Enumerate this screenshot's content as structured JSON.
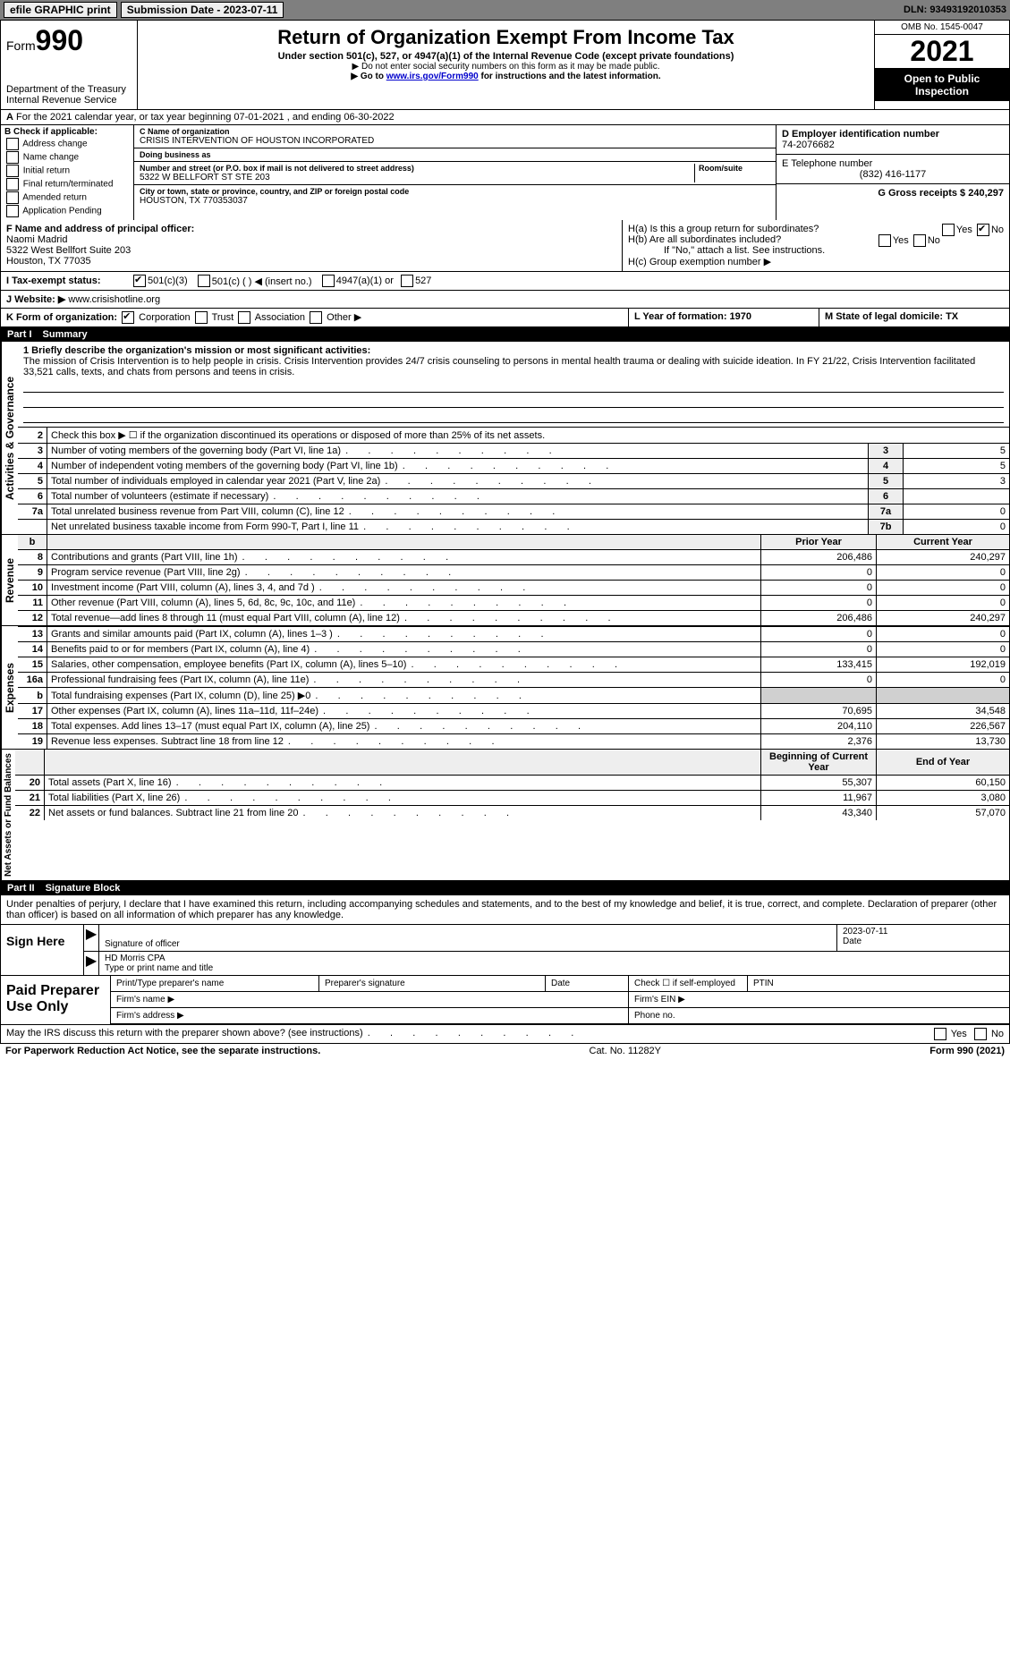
{
  "topbar": {
    "efile_label": "efile GRAPHIC print",
    "submission_label": "Submission Date - 2023-07-11",
    "dln": "DLN: 93493192010353"
  },
  "header": {
    "form_word": "Form",
    "form_num": "990",
    "dept": "Department of the Treasury",
    "irs": "Internal Revenue Service",
    "title": "Return of Organization Exempt From Income Tax",
    "subtitle": "Under section 501(c), 527, or 4947(a)(1) of the Internal Revenue Code (except private foundations)",
    "note1": "▶ Do not enter social security numbers on this form as it may be made public.",
    "note2_pre": "▶ Go to ",
    "note2_link": "www.irs.gov/Form990",
    "note2_post": " for instructions and the latest information.",
    "omb": "OMB No. 1545-0047",
    "year": "2021",
    "open_pub": "Open to Public Inspection"
  },
  "rowA": {
    "text": "For the 2021 calendar year, or tax year beginning 07-01-2021    , and ending 06-30-2022",
    "prefix": "A"
  },
  "secB": {
    "b_label": "B Check if applicable:",
    "addr_change": "Address change",
    "name_change": "Name change",
    "initial": "Initial return",
    "final": "Final return/terminated",
    "amended": "Amended return",
    "app_pending": "Application Pending",
    "c_label": "C Name of organization",
    "c_val": "CRISIS INTERVENTION OF HOUSTON INCORPORATED",
    "dba_label": "Doing business as",
    "dba_val": "",
    "addr_label": "Number and street (or P.O. box if mail is not delivered to street address)",
    "room_label": "Room/suite",
    "addr_val": "5322 W BELLFORT ST STE 203",
    "city_label": "City or town, state or province, country, and ZIP or foreign postal code",
    "city_val": "HOUSTON, TX  770353037",
    "d_label": "D Employer identification number",
    "d_val": "74-2076682",
    "e_label": "E Telephone number",
    "e_val": "(832) 416-1177",
    "g_label": "G Gross receipts $ 240,297"
  },
  "secFGH": {
    "f_label": "F Name and address of principal officer:",
    "f_name": "Naomi Madrid",
    "f_addr1": "5322 West Bellfort Suite 203",
    "f_addr2": "Houston, TX  77035",
    "h_a": "H(a)  Is this a group return for subordinates?",
    "h_b": "H(b)  Are all subordinates included?",
    "h_b_note": "If \"No,\" attach a list. See instructions.",
    "h_c": "H(c)  Group exemption number ▶",
    "yes": "Yes",
    "no": "No"
  },
  "rowI": {
    "label": "I  Tax-exempt status:",
    "opt1": "501(c)(3)",
    "opt2": "501(c) (   ) ◀ (insert no.)",
    "opt3": "4947(a)(1) or",
    "opt4": "527"
  },
  "rowJ": {
    "label": "J  Website: ▶",
    "val": "www.crisishotline.org"
  },
  "rowK": {
    "label": "K Form of organization:",
    "opt1": "Corporation",
    "opt2": "Trust",
    "opt3": "Association",
    "opt4": "Other ▶"
  },
  "rowL": {
    "l_label": "L Year of formation: 1970",
    "m_label": "M State of legal domicile: TX"
  },
  "part1": {
    "hdr_num": "Part I",
    "hdr_title": "Summary"
  },
  "summary": {
    "q1_label": "1  Briefly describe the organization's mission or most significant activities:",
    "q1_text": "The mission of Crisis Intervention is to help people in crisis. Crisis Intervention provides 24/7 crisis counseling to persons in mental health trauma or dealing with suicide ideation. In FY 21/22, Crisis Intervention facilitated 33,521 calls, texts, and chats from persons and teens in crisis.",
    "q2": "Check this box ▶ ☐  if the organization discontinued its operations or disposed of more than 25% of its net assets.",
    "vert_ag": "Activities & Governance",
    "vert_rev": "Revenue",
    "vert_exp": "Expenses",
    "vert_net": "Net Assets or Fund Balances",
    "lines_ag": [
      {
        "n": "3",
        "t": "Number of voting members of the governing body (Part VI, line 1a)",
        "box": "3",
        "v": "5"
      },
      {
        "n": "4",
        "t": "Number of independent voting members of the governing body (Part VI, line 1b)",
        "box": "4",
        "v": "5"
      },
      {
        "n": "5",
        "t": "Total number of individuals employed in calendar year 2021 (Part V, line 2a)",
        "box": "5",
        "v": "3"
      },
      {
        "n": "6",
        "t": "Total number of volunteers (estimate if necessary)",
        "box": "6",
        "v": ""
      },
      {
        "n": "7a",
        "t": "Total unrelated business revenue from Part VIII, column (C), line 12",
        "box": "7a",
        "v": "0"
      },
      {
        "n": "",
        "t": "Net unrelated business taxable income from Form 990-T, Part I, line 11",
        "box": "7b",
        "v": "0"
      }
    ],
    "col_prior": "Prior Year",
    "col_curr": "Current Year",
    "lines_rev": [
      {
        "n": "8",
        "t": "Contributions and grants (Part VIII, line 1h)",
        "p": "206,486",
        "c": "240,297"
      },
      {
        "n": "9",
        "t": "Program service revenue (Part VIII, line 2g)",
        "p": "0",
        "c": "0"
      },
      {
        "n": "10",
        "t": "Investment income (Part VIII, column (A), lines 3, 4, and 7d )",
        "p": "0",
        "c": "0"
      },
      {
        "n": "11",
        "t": "Other revenue (Part VIII, column (A), lines 5, 6d, 8c, 9c, 10c, and 11e)",
        "p": "0",
        "c": "0"
      },
      {
        "n": "12",
        "t": "Total revenue—add lines 8 through 11 (must equal Part VIII, column (A), line 12)",
        "p": "206,486",
        "c": "240,297"
      }
    ],
    "lines_exp": [
      {
        "n": "13",
        "t": "Grants and similar amounts paid (Part IX, column (A), lines 1–3 )",
        "p": "0",
        "c": "0"
      },
      {
        "n": "14",
        "t": "Benefits paid to or for members (Part IX, column (A), line 4)",
        "p": "0",
        "c": "0"
      },
      {
        "n": "15",
        "t": "Salaries, other compensation, employee benefits (Part IX, column (A), lines 5–10)",
        "p": "133,415",
        "c": "192,019"
      },
      {
        "n": "16a",
        "t": "Professional fundraising fees (Part IX, column (A), line 11e)",
        "p": "0",
        "c": "0"
      },
      {
        "n": "b",
        "t": "Total fundraising expenses (Part IX, column (D), line 25) ▶0",
        "p": "",
        "c": "",
        "shaded": true
      },
      {
        "n": "17",
        "t": "Other expenses (Part IX, column (A), lines 11a–11d, 11f–24e)",
        "p": "70,695",
        "c": "34,548"
      },
      {
        "n": "18",
        "t": "Total expenses. Add lines 13–17 (must equal Part IX, column (A), line 25)",
        "p": "204,110",
        "c": "226,567"
      },
      {
        "n": "19",
        "t": "Revenue less expenses. Subtract line 18 from line 12",
        "p": "2,376",
        "c": "13,730"
      }
    ],
    "col_beg": "Beginning of Current Year",
    "col_end": "End of Year",
    "lines_net": [
      {
        "n": "20",
        "t": "Total assets (Part X, line 16)",
        "p": "55,307",
        "c": "60,150"
      },
      {
        "n": "21",
        "t": "Total liabilities (Part X, line 26)",
        "p": "11,967",
        "c": "3,080"
      },
      {
        "n": "22",
        "t": "Net assets or fund balances. Subtract line 21 from line 20",
        "p": "43,340",
        "c": "57,070"
      }
    ]
  },
  "part2": {
    "hdr_num": "Part II",
    "hdr_title": "Signature Block"
  },
  "sig": {
    "decl": "Under penalties of perjury, I declare that I have examined this return, including accompanying schedules and statements, and to the best of my knowledge and belief, it is true, correct, and complete. Declaration of preparer (other than officer) is based on all information of which preparer has any knowledge.",
    "sign_here": "Sign Here",
    "sig_officer": "Signature of officer",
    "date_val": "2023-07-11",
    "date_lbl": "Date",
    "name_val": "HD Morris CPA",
    "name_lbl": "Type or print name and title",
    "paid": "Paid Preparer Use Only",
    "pt_name": "Print/Type preparer's name",
    "pt_sig": "Preparer's signature",
    "pt_date": "Date",
    "pt_self": "Check ☐ if self-employed",
    "ptin": "PTIN",
    "firm_name": "Firm's name  ▶",
    "firm_ein": "Firm's EIN ▶",
    "firm_addr": "Firm's address ▶",
    "phone": "Phone no.",
    "discuss": "May the IRS discuss this return with the preparer shown above? (see instructions)",
    "yes": "Yes",
    "no": "No"
  },
  "footer": {
    "pra": "For Paperwork Reduction Act Notice, see the separate instructions.",
    "cat": "Cat. No. 11282Y",
    "form": "Form 990 (2021)"
  }
}
